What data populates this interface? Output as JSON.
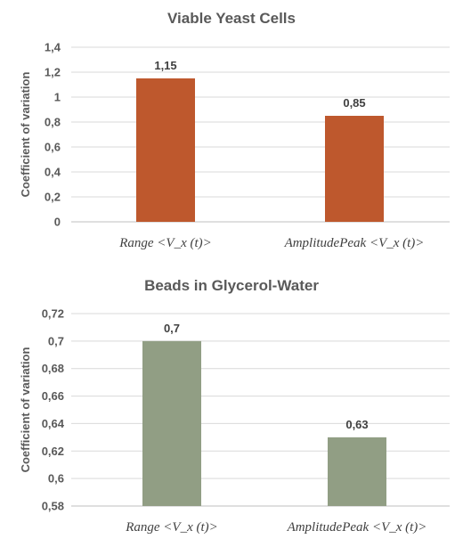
{
  "chart_data": [
    {
      "type": "bar",
      "title": "Viable Yeast Cells",
      "xlabel": "",
      "ylabel": "Coefficient of variation",
      "categories": [
        "Range <V_x (t)>",
        "AmplitudePeak <V_x (t)>"
      ],
      "values": [
        1.15,
        0.85
      ],
      "value_labels": [
        "1,15",
        "0,85"
      ],
      "ylim": [
        0,
        1.4
      ],
      "yticks": [
        0,
        0.2,
        0.4,
        0.6,
        0.8,
        1,
        1.2,
        1.4
      ],
      "ytick_labels": [
        "0",
        "0,2",
        "0,4",
        "0,6",
        "0,8",
        "1",
        "1,2",
        "1,4"
      ],
      "grid": true,
      "bar_color": "#BE582D"
    },
    {
      "type": "bar",
      "title": "Beads in Glycerol-Water",
      "xlabel": "",
      "ylabel": "Coefficient of variation",
      "categories": [
        "Range <V_x (t)>",
        "AmplitudePeak <V_x (t)>"
      ],
      "values": [
        0.7,
        0.63
      ],
      "value_labels": [
        "0,7",
        "0,63"
      ],
      "ylim": [
        0.58,
        0.72
      ],
      "yticks": [
        0.58,
        0.6,
        0.62,
        0.64,
        0.66,
        0.68,
        0.7,
        0.72
      ],
      "ytick_labels": [
        "0,58",
        "0,6",
        "0,62",
        "0,64",
        "0,66",
        "0,68",
        "0,7",
        "0,72"
      ],
      "grid": true,
      "bar_color": "#919E84"
    }
  ]
}
